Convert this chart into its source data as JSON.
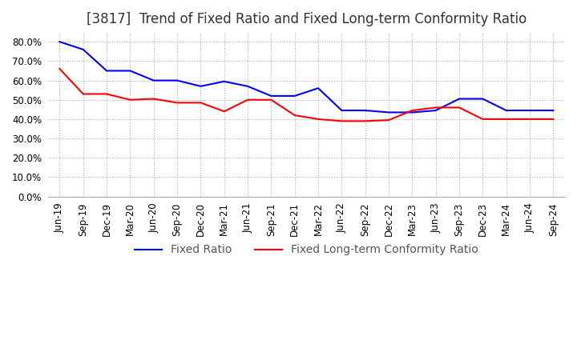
{
  "title": "[3817]  Trend of Fixed Ratio and Fixed Long-term Conformity Ratio",
  "x_labels": [
    "Jun-19",
    "Sep-19",
    "Dec-19",
    "Mar-20",
    "Jun-20",
    "Sep-20",
    "Dec-20",
    "Mar-21",
    "Jun-21",
    "Sep-21",
    "Dec-21",
    "Mar-22",
    "Jun-22",
    "Sep-22",
    "Dec-22",
    "Mar-23",
    "Jun-23",
    "Sep-23",
    "Dec-23",
    "Mar-24",
    "Jun-24",
    "Sep-24"
  ],
  "fixed_ratio": [
    80.0,
    76.0,
    65.0,
    65.0,
    60.0,
    60.0,
    57.0,
    59.5,
    57.0,
    52.0,
    52.0,
    56.0,
    44.5,
    44.5,
    43.5,
    43.5,
    44.5,
    50.5,
    50.5,
    44.5,
    44.5,
    44.5
  ],
  "fixed_lt_ratio": [
    66.0,
    53.0,
    53.0,
    50.0,
    50.5,
    48.5,
    48.5,
    44.0,
    50.0,
    50.0,
    42.0,
    40.0,
    39.0,
    39.0,
    39.5,
    44.5,
    46.0,
    46.0,
    40.0,
    40.0,
    40.0,
    40.0
  ],
  "fixed_ratio_color": "#0000ff",
  "fixed_lt_ratio_color": "#ff0000",
  "ylim": [
    0.0,
    85.0
  ],
  "yticks": [
    0.0,
    10.0,
    20.0,
    30.0,
    40.0,
    50.0,
    60.0,
    70.0,
    80.0
  ],
  "background_color": "#ffffff",
  "grid_color": "#aaaaaa",
  "title_fontsize": 12,
  "legend_fontsize": 10,
  "axis_fontsize": 8.5
}
